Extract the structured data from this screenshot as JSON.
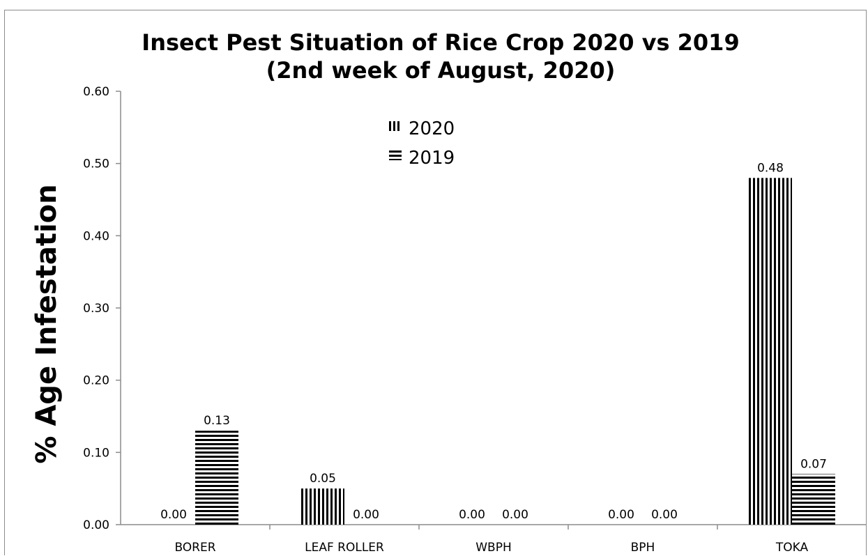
{
  "chart_data": {
    "type": "bar",
    "title": "Insect Pest Situation of Rice Crop 2020 vs 2019",
    "subtitle": "(2nd week of August, 2020)",
    "xlabel": "",
    "ylabel": "% Age Infestation",
    "ylim": [
      0,
      0.6
    ],
    "yticks": [
      "0.00",
      "0.10",
      "0.20",
      "0.30",
      "0.40",
      "0.50",
      "0.60"
    ],
    "categories": [
      "BORER",
      "LEAF ROLLER",
      "WBPH",
      "BPH",
      "TOKA"
    ],
    "series": [
      {
        "name": "2020",
        "values": [
          0.0,
          0.05,
          0.0,
          0.0,
          0.48
        ],
        "labels": [
          "0.00",
          "0.05",
          "0.00",
          "0.00",
          "0.48"
        ],
        "pattern": "vertical-stripes"
      },
      {
        "name": "2019",
        "values": [
          0.13,
          0.0,
          0.0,
          0.0,
          0.07
        ],
        "labels": [
          "0.13",
          "0.00",
          "0.00",
          "0.00",
          "0.07"
        ],
        "pattern": "horizontal-stripes"
      }
    ],
    "legend_position": "top-center",
    "grid": false,
    "colors": {
      "bar": "#000000",
      "background": "#ffffff",
      "axis": "#8c8c8c"
    }
  }
}
